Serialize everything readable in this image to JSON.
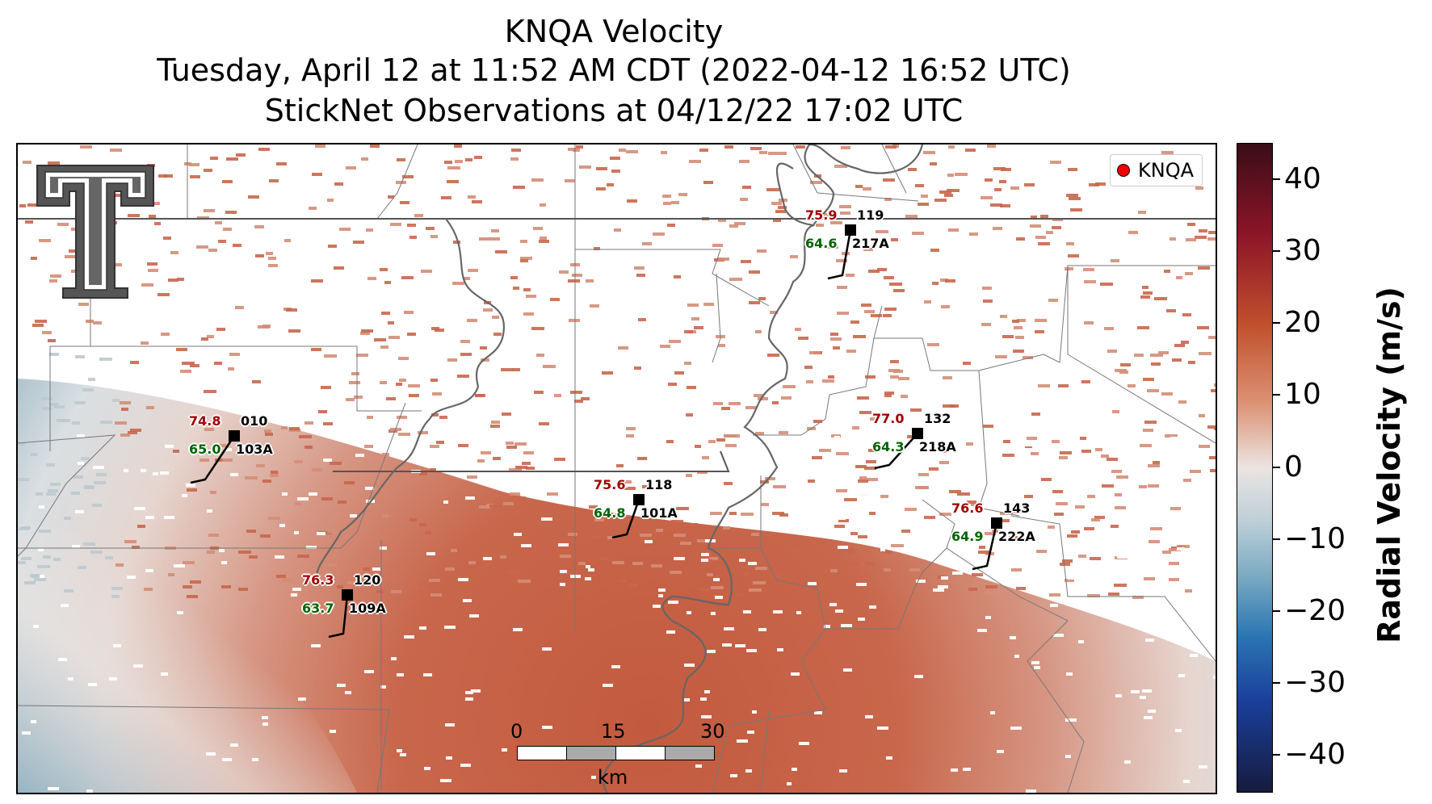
{
  "title": {
    "line1": "KNQA Velocity",
    "line2": "Tuesday, April 12 at 11:52 AM CDT (2022-04-12 16:52 UTC)",
    "line3": "StickNet Observations at 04/12/22 17:02 UTC"
  },
  "legend": {
    "label": "KNQA",
    "marker_color": "#e00000"
  },
  "colorbar": {
    "label": "Radial Velocity (m/s)",
    "ticks": [
      "40",
      "30",
      "20",
      "10",
      "0",
      "−10",
      "−20",
      "−30",
      "−40"
    ],
    "range": [
      -45,
      45
    ]
  },
  "scale_bar": {
    "labels": [
      "0",
      "15",
      "30"
    ],
    "unit": "km"
  },
  "stations": [
    {
      "id": "119",
      "name": "217A",
      "temp": "75.9",
      "dew": "64.6"
    },
    {
      "id": "010",
      "name": "103A",
      "temp": "74.8",
      "dew": "65.0"
    },
    {
      "id": "132",
      "name": "218A",
      "temp": "77.0",
      "dew": "64.3"
    },
    {
      "id": "118",
      "name": "101A",
      "temp": "75.6",
      "dew": "64.8"
    },
    {
      "id": "143",
      "name": "222A",
      "temp": "76.6",
      "dew": "64.9"
    },
    {
      "id": "120",
      "name": "109A",
      "temp": "76.3",
      "dew": "63.7"
    }
  ],
  "colors": {
    "temp": "#a00000",
    "dew": "#006400",
    "velocity_positive": "#c8674c",
    "velocity_light": "#d9a08c",
    "velocity_negative": "#9bb6c4"
  },
  "logo": {
    "icon": "texas-tech-double-t-logo"
  }
}
